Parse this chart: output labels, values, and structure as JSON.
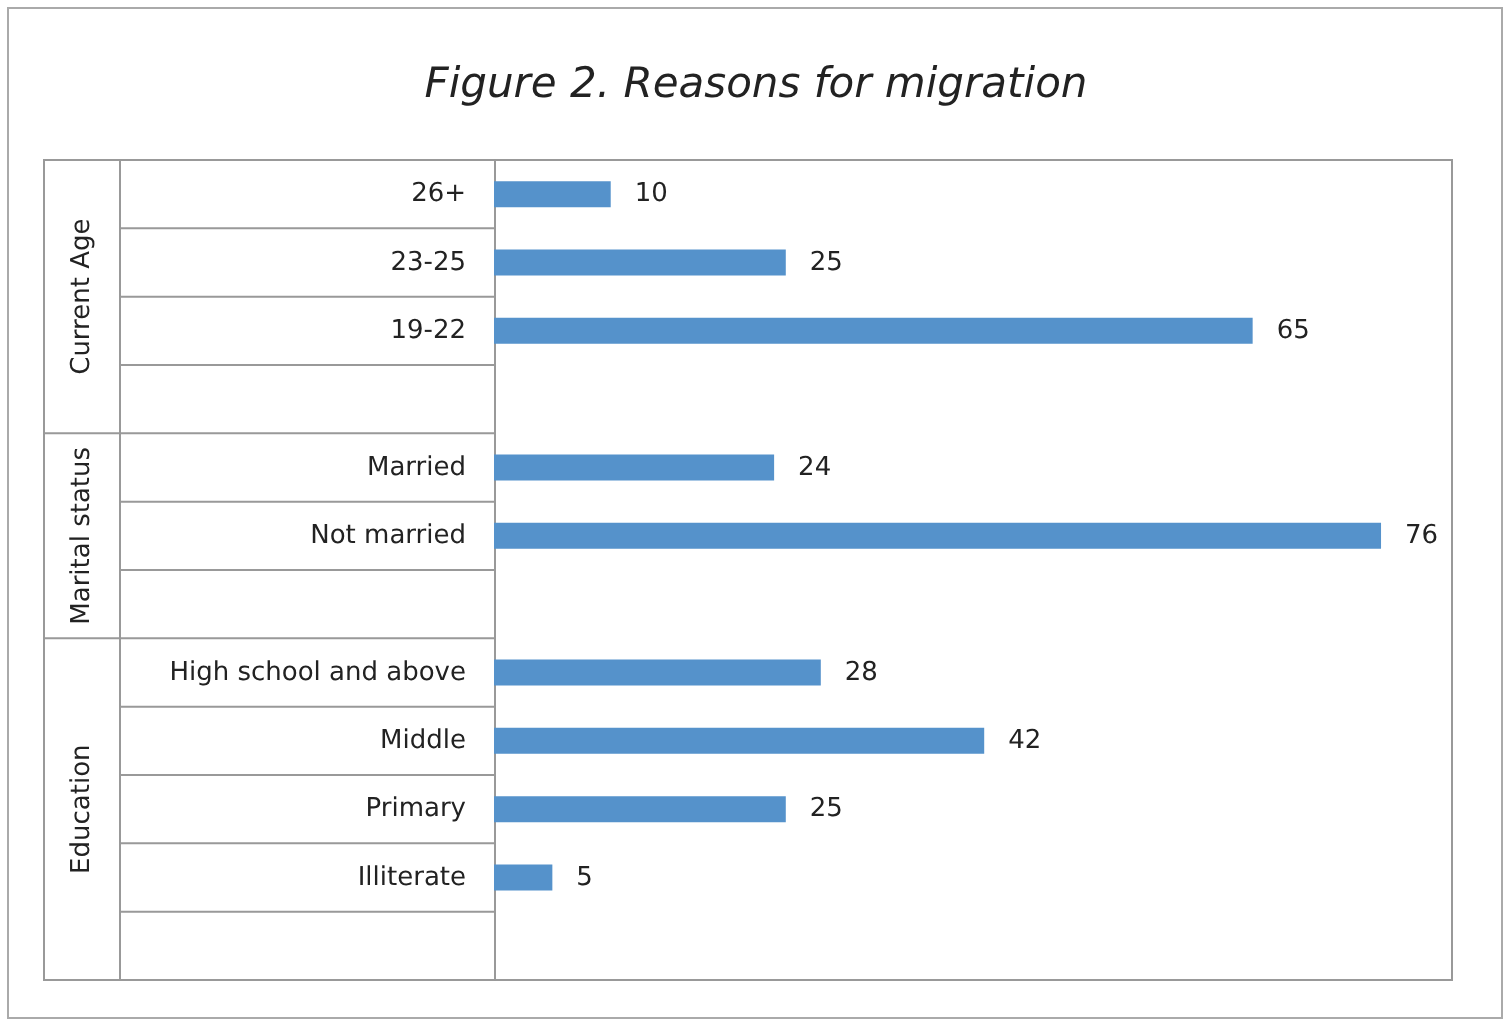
{
  "chart_data": {
    "type": "bar",
    "orientation": "horizontal",
    "title": "Figure 2. Reasons for migration",
    "categories": [
      "26+",
      "23-25",
      "19-22",
      null,
      "Married",
      "Not married",
      null,
      "High school and above",
      "Middle",
      "Primary",
      "Illiterate",
      null
    ],
    "values": [
      10,
      25,
      65,
      null,
      24,
      76,
      null,
      28,
      42,
      25,
      5,
      null
    ],
    "color": "#5592cb",
    "data_labels": true,
    "annotations": [
      "Current Age",
      "Marital status",
      "Education"
    ]
  }
}
